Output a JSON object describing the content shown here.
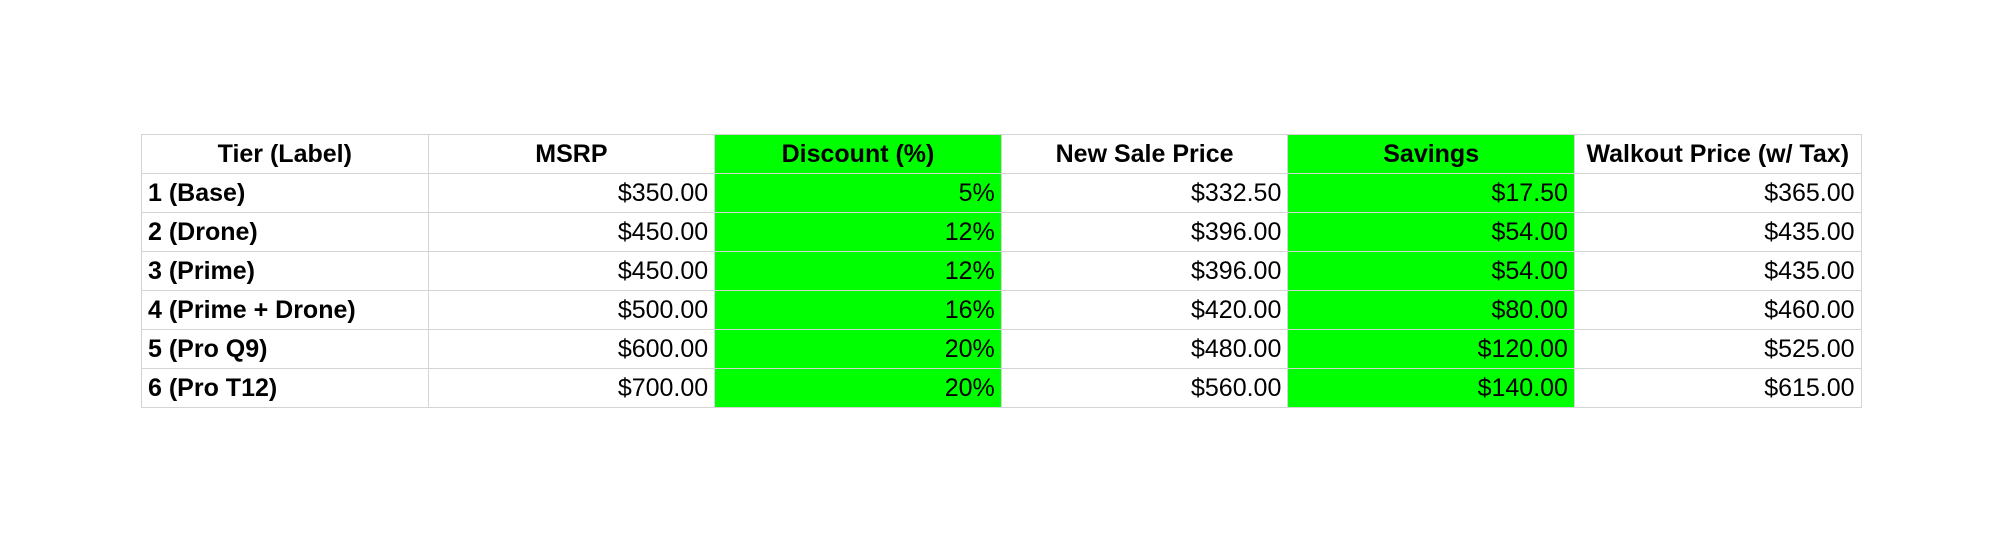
{
  "table": {
    "highlight_color": "#00ff00",
    "border_color": "#d4d4d4",
    "headers": [
      "Tier (Label)",
      "MSRP",
      "Discount (%)",
      "New Sale Price",
      "Savings",
      "Walkout Price (w/ Tax)"
    ],
    "highlighted_columns": [
      "Discount (%)",
      "Savings"
    ],
    "rows": [
      [
        "1 (Base)",
        "$350.00",
        "5%",
        "$332.50",
        "$17.50",
        "$365.00"
      ],
      [
        "2 (Drone)",
        "$450.00",
        "12%",
        "$396.00",
        "$54.00",
        "$435.00"
      ],
      [
        "3 (Prime)",
        "$450.00",
        "12%",
        "$396.00",
        "$54.00",
        "$435.00"
      ],
      [
        "4 (Prime + Drone)",
        "$500.00",
        "16%",
        "$420.00",
        "$80.00",
        "$460.00"
      ],
      [
        "5 (Pro Q9)",
        "$600.00",
        "20%",
        "$480.00",
        "$120.00",
        "$525.00"
      ],
      [
        "6 (Pro T12)",
        "$700.00",
        "20%",
        "$560.00",
        "$140.00",
        "$615.00"
      ]
    ]
  }
}
